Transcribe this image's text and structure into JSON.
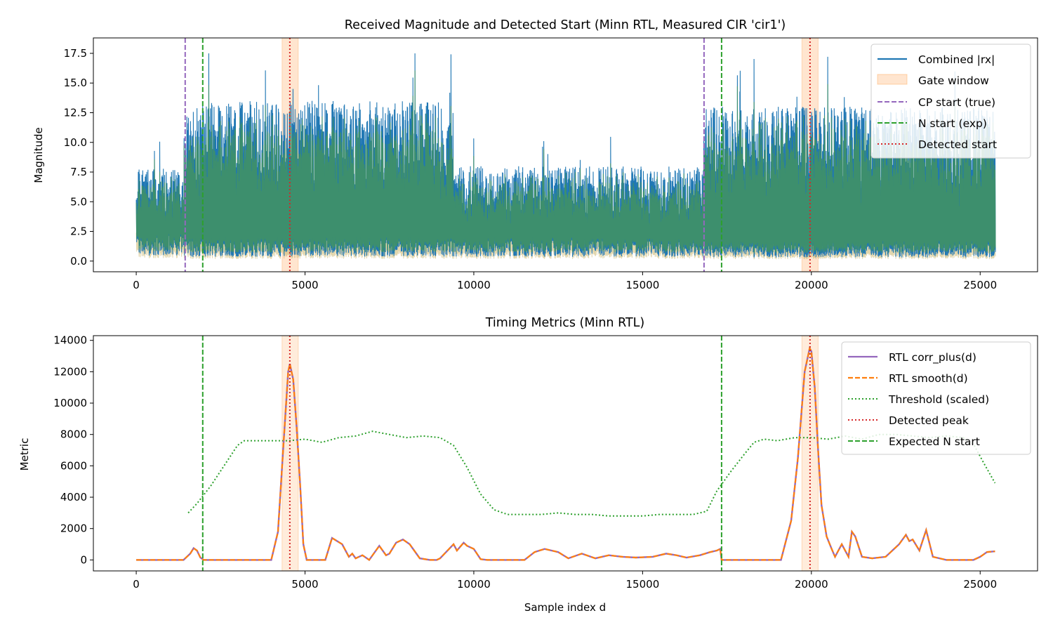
{
  "chart_data": [
    {
      "type": "line",
      "title": "Received Magnitude and Detected Start (Minn RTL, Measured CIR 'cir1')",
      "xlabel": "",
      "ylabel": "Magnitude",
      "xlim": [
        -1270,
        26700
      ],
      "ylim": [
        -0.9,
        18.8
      ],
      "xticks": [
        0,
        5000,
        10000,
        15000,
        20000,
        25000
      ],
      "yticks": [
        0.0,
        2.5,
        5.0,
        7.5,
        10.0,
        12.5,
        15.0,
        17.5
      ],
      "ytick_labels": [
        "0.0",
        "2.5",
        "5.0",
        "7.5",
        "10.0",
        "12.5",
        "15.0",
        "17.5"
      ],
      "xtick_labels": [
        "0",
        "5000",
        "10000",
        "15000",
        "20000",
        "25000"
      ],
      "legend_position": "top-right",
      "legend": [
        "Combined |rx|",
        "Gate window",
        "CP start (true)",
        "N start (exp)",
        "Detected start"
      ],
      "colors": {
        "rx": "#1f77b4",
        "gate": "#ff7f0e",
        "cp": "#9467bd",
        "nstart": "#2ca02c",
        "detected": "#d62728",
        "green_fill": "#4a9a4f"
      },
      "signal_x_range": [
        0,
        25440
      ],
      "signal_envelope": [
        {
          "x": [
            0,
            1450
          ],
          "upper": 7.8,
          "lower": 1.5
        },
        {
          "x": [
            1450,
            9400
          ],
          "upper": 13.5,
          "lower": 1.2
        },
        {
          "x": [
            9400,
            16800
          ],
          "upper": 8.0,
          "lower": 1.2
        },
        {
          "x": [
            16800,
            25440
          ],
          "upper": 13.0,
          "lower": 1.0
        }
      ],
      "peak_max": 17.5,
      "gate_windows": [
        [
          4320,
          4800
        ],
        [
          19720,
          20200
        ]
      ],
      "cp_start_true": [
        1450,
        16820
      ],
      "n_start_exp": [
        1970,
        17340
      ],
      "detected_start": [
        4550,
        19960
      ]
    },
    {
      "type": "line",
      "title": "Timing Metrics (Minn RTL)",
      "xlabel": "Sample index d",
      "ylabel": "Metric",
      "xlim": [
        -1270,
        26700
      ],
      "ylim": [
        -700,
        14300
      ],
      "xticks": [
        0,
        5000,
        10000,
        15000,
        20000,
        25000
      ],
      "xtick_labels": [
        "0",
        "5000",
        "10000",
        "15000",
        "20000",
        "25000"
      ],
      "yticks": [
        0,
        2000,
        4000,
        6000,
        8000,
        10000,
        12000,
        14000
      ],
      "ytick_labels": [
        "0",
        "2000",
        "4000",
        "6000",
        "8000",
        "10000",
        "12000",
        "14000"
      ],
      "legend_position": "top-right",
      "legend": [
        "RTL corr_plus(d)",
        "RTL smooth(d)",
        "Threshold (scaled)",
        "Detected peak",
        "Expected N start"
      ],
      "colors": {
        "corr": "#9467bd",
        "smooth": "#ff7f0e",
        "threshold": "#2ca02c",
        "detected": "#d62728",
        "expected": "#2ca02c"
      },
      "gate_windows": [
        [
          4320,
          4800
        ],
        [
          19720,
          20200
        ]
      ],
      "expected_n_start": [
        1970,
        17340
      ],
      "detected_peak": [
        4550,
        19960
      ],
      "corr_plus": {
        "x": [
          0,
          1400,
          1600,
          1700,
          1800,
          1900,
          2000,
          4000,
          4200,
          4350,
          4500,
          4550,
          4650,
          4750,
          4850,
          4950,
          5050,
          5600,
          5800,
          6100,
          6300,
          6400,
          6500,
          6700,
          6900,
          7200,
          7400,
          7500,
          7700,
          7900,
          8100,
          8400,
          8700,
          8900,
          9000,
          9400,
          9500,
          9700,
          9800,
          10000,
          10200,
          10400,
          10800,
          11500,
          11800,
          12100,
          12500,
          12800,
          13200,
          13600,
          14000,
          14400,
          14800,
          15300,
          15700,
          16000,
          16300,
          16700,
          17000,
          17200,
          17300,
          17340,
          17400,
          19100,
          19400,
          19600,
          19800,
          19950,
          20000,
          20100,
          20200,
          20300,
          20450,
          20600,
          20700,
          20900,
          21100,
          21200,
          21300,
          21500,
          21800,
          22200,
          22600,
          22800,
          22900,
          23000,
          23200,
          23400,
          23600,
          24000,
          24800,
          25000,
          25200,
          25440
        ],
        "y": [
          0,
          0,
          400,
          750,
          600,
          150,
          0,
          0,
          1800,
          7000,
          12000,
          12500,
          11500,
          8500,
          5000,
          1000,
          0,
          0,
          1400,
          1000,
          200,
          400,
          100,
          300,
          0,
          900,
          300,
          400,
          1100,
          1300,
          1000,
          100,
          0,
          0,
          100,
          1000,
          600,
          1100,
          900,
          700,
          50,
          0,
          0,
          0,
          500,
          700,
          500,
          100,
          400,
          100,
          300,
          200,
          150,
          200,
          400,
          300,
          150,
          300,
          500,
          600,
          700,
          0,
          0,
          0,
          2500,
          6500,
          12000,
          13500,
          13300,
          11000,
          7000,
          3500,
          1500,
          700,
          200,
          1000,
          200,
          1800,
          1500,
          200,
          100,
          200,
          1000,
          1600,
          1200,
          1300,
          600,
          1900,
          200,
          0,
          0,
          200,
          500,
          550
        ]
      },
      "threshold": {
        "x": [
          1540,
          1800,
          2200,
          2600,
          3000,
          3200,
          3600,
          4000,
          4500,
          5000,
          5500,
          6000,
          6500,
          7000,
          7500,
          8000,
          8500,
          9000,
          9400,
          9800,
          10200,
          10600,
          11000,
          11500,
          12000,
          12500,
          13000,
          13500,
          14000,
          14500,
          15000,
          15500,
          16000,
          16500,
          16900,
          17200,
          17600,
          18000,
          18300,
          18600,
          19000,
          19500,
          20000,
          20500,
          21000,
          21500,
          22000,
          22500,
          23000,
          23500,
          24000,
          24500,
          24800,
          25100,
          25440
        ],
        "y": [
          3000,
          3600,
          4700,
          6000,
          7300,
          7600,
          7600,
          7600,
          7600,
          7700,
          7500,
          7800,
          7900,
          8200,
          8000,
          7800,
          7900,
          7800,
          7300,
          5900,
          4200,
          3200,
          2900,
          2900,
          2900,
          3000,
          2900,
          2900,
          2800,
          2800,
          2800,
          2900,
          2900,
          2900,
          3100,
          4400,
          5600,
          6700,
          7500,
          7700,
          7600,
          7800,
          7800,
          7700,
          7900,
          7700,
          8000,
          8000,
          7900,
          7800,
          7900,
          7800,
          7400,
          6200,
          4900
        ]
      }
    }
  ]
}
